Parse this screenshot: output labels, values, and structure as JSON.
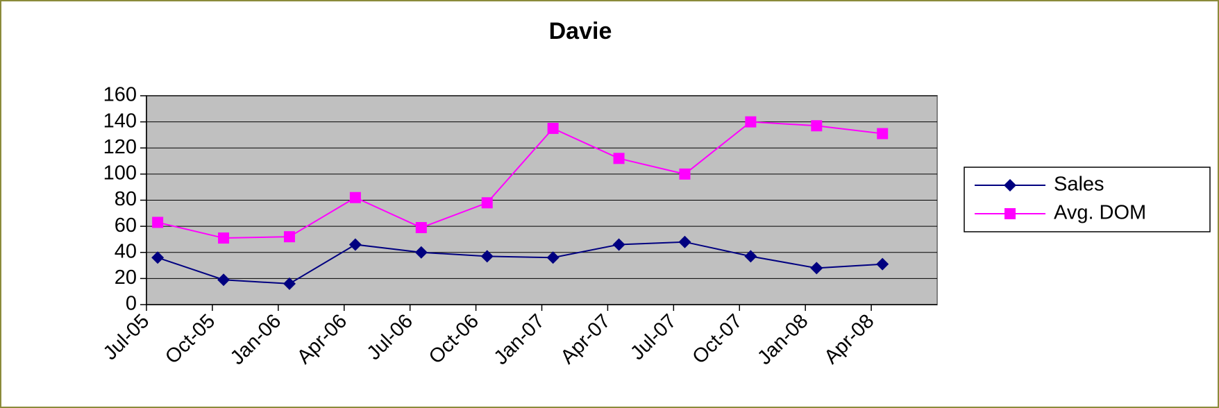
{
  "chart_data": {
    "type": "line",
    "title": "Davie",
    "categories": [
      "Jul-05",
      "Oct-05",
      "Jan-06",
      "Apr-06",
      "Jul-06",
      "Oct-06",
      "Jan-07",
      "Apr-07",
      "Jul-07",
      "Oct-07",
      "Jan-08",
      "Apr-08"
    ],
    "series": [
      {
        "name": "Sales",
        "color": "#000080",
        "marker": "diamond",
        "values": [
          36,
          19,
          16,
          46,
          40,
          37,
          36,
          46,
          48,
          37,
          28,
          31
        ]
      },
      {
        "name": "Avg. DOM",
        "color": "#ff00ff",
        "marker": "square",
        "values": [
          63,
          51,
          52,
          82,
          59,
          78,
          135,
          112,
          100,
          140,
          137,
          131
        ]
      }
    ],
    "ylim": [
      0,
      160
    ],
    "yticks": [
      0,
      20,
      40,
      60,
      80,
      100,
      120,
      140,
      160
    ],
    "grid": true,
    "legend": "right"
  }
}
